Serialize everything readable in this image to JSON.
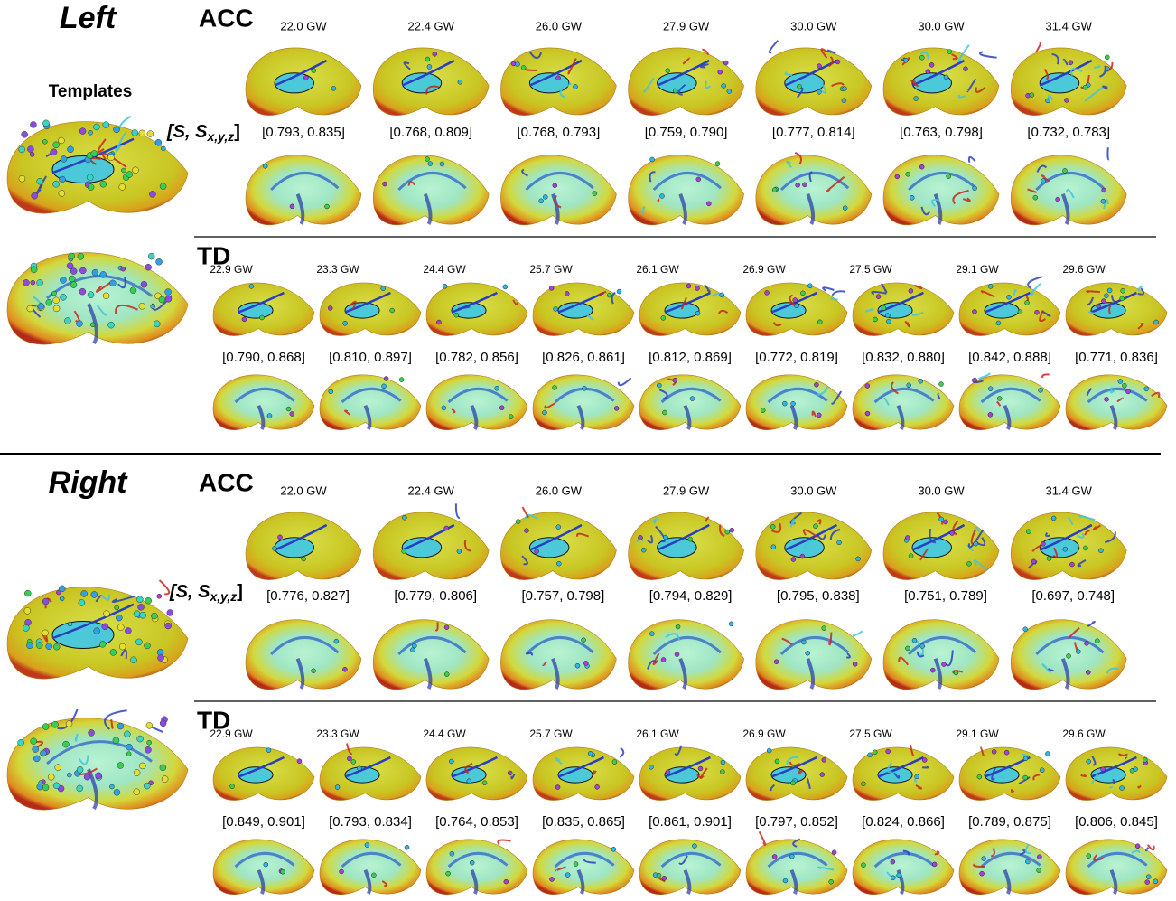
{
  "panels": [
    {
      "side": "Left",
      "templates_label": "Templates",
      "groups": [
        {
          "name": "ACC",
          "metric_label": {
            "open": "[S, S",
            "sub": "x,y,z",
            "close": "]"
          },
          "ages": [
            "22.0 GW",
            "22.4 GW",
            "26.0 GW",
            "27.9 GW",
            "30.0 GW",
            "30.0 GW",
            "31.4 GW"
          ],
          "intervals": [
            "[0.793, 0.835]",
            "[0.768, 0.809]",
            "[0.768, 0.793]",
            "[0.759, 0.790]",
            "[0.777, 0.814]",
            "[0.763, 0.798]",
            "[0.732, 0.783]"
          ]
        },
        {
          "name": "TD",
          "ages": [
            "22.9 GW",
            "23.3 GW",
            "24.4 GW",
            "25.7 GW",
            "26.1 GW",
            "26.9 GW",
            "27.5 GW",
            "29.1 GW",
            "29.6 GW"
          ],
          "intervals": [
            "[0.790, 0.868]",
            "[0.810, 0.897]",
            "[0.782, 0.856]",
            "[0.826, 0.861]",
            "[0.812, 0.869]",
            "[0.772, 0.819]",
            "[0.832, 0.880]",
            "[0.842, 0.888]",
            "[0.771, 0.836]"
          ]
        }
      ]
    },
    {
      "side": "Right",
      "groups": [
        {
          "name": "ACC",
          "metric_label": {
            "open": "[S, S",
            "sub": "x,y,z",
            "close": "]"
          },
          "ages": [
            "22.0 GW",
            "22.4 GW",
            "26.0 GW",
            "27.9 GW",
            "30.0 GW",
            "30.0 GW",
            "31.4 GW"
          ],
          "intervals": [
            "[0.776, 0.827]",
            "[0.779, 0.806]",
            "[0.757, 0.798]",
            "[0.794, 0.829]",
            "[0.795, 0.838]",
            "[0.751, 0.789]",
            "[0.697, 0.748]"
          ]
        },
        {
          "name": "TD",
          "ages": [
            "22.9 GW",
            "23.3 GW",
            "24.4 GW",
            "25.7 GW",
            "26.1 GW",
            "26.9 GW",
            "27.5 GW",
            "29.1 GW",
            "29.6 GW"
          ],
          "intervals": [
            "[0.849, 0.901]",
            "[0.793, 0.834]",
            "[0.764, 0.853]",
            "[0.835, 0.865]",
            "[0.861, 0.901]",
            "[0.797, 0.852]",
            "[0.824, 0.866]",
            "[0.789, 0.875]",
            "[0.806, 0.845]"
          ]
        }
      ]
    }
  ]
}
